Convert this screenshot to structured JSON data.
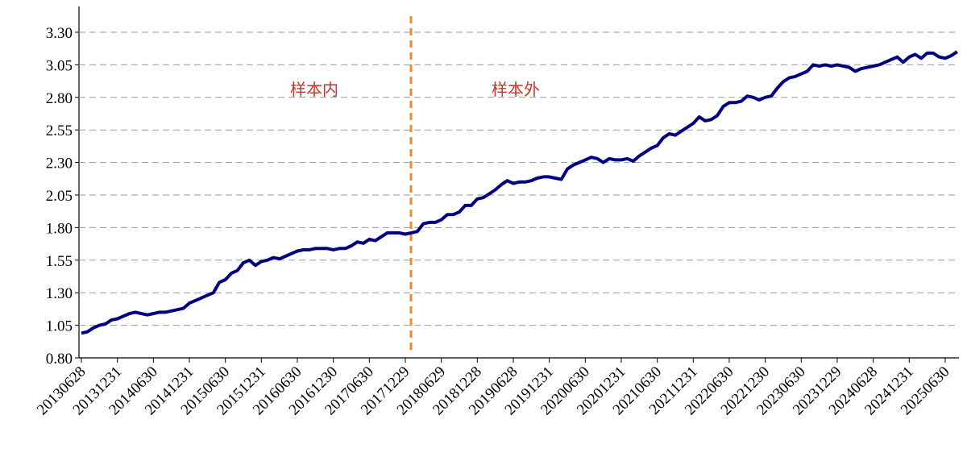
{
  "chart_data": {
    "type": "line",
    "annotations": [
      "样本内",
      "样本外"
    ],
    "categories": [
      "20130628",
      null,
      null,
      null,
      null,
      null,
      "20131231",
      null,
      null,
      null,
      null,
      null,
      "20140630",
      null,
      null,
      null,
      null,
      null,
      "20141231",
      null,
      null,
      null,
      null,
      null,
      "20150630",
      null,
      null,
      null,
      null,
      null,
      "20151231",
      null,
      null,
      null,
      null,
      null,
      "20160630",
      null,
      null,
      null,
      null,
      null,
      "20161230",
      null,
      null,
      null,
      null,
      null,
      "20170630",
      null,
      null,
      null,
      null,
      null,
      "20171229",
      null,
      null,
      null,
      null,
      null,
      "20180629",
      null,
      null,
      null,
      null,
      null,
      "20181228",
      null,
      null,
      null,
      null,
      null,
      "20190628",
      null,
      null,
      null,
      null,
      null,
      "20191231",
      null,
      null,
      null,
      null,
      null,
      "20200630",
      null,
      null,
      null,
      null,
      null,
      "20201231",
      null,
      null,
      null,
      null,
      null,
      "20210630",
      null,
      null,
      null,
      null,
      null,
      "20211231",
      null,
      null,
      null,
      null,
      null,
      "20220630",
      null,
      null,
      null,
      null,
      null,
      "20221230",
      null,
      null,
      null,
      null,
      null,
      "20230630",
      null,
      null,
      null,
      null,
      null,
      "20231229",
      null,
      null,
      null,
      null,
      null,
      "20240628",
      null,
      null,
      null,
      null,
      null,
      "20241231",
      null,
      null,
      null,
      null,
      null,
      "20250630",
      null,
      null
    ],
    "values": [
      0.99,
      1.0,
      1.03,
      1.05,
      1.06,
      1.09,
      1.1,
      1.12,
      1.14,
      1.15,
      1.14,
      1.13,
      1.14,
      1.15,
      1.15,
      1.16,
      1.17,
      1.18,
      1.22,
      1.24,
      1.26,
      1.28,
      1.3,
      1.38,
      1.4,
      1.45,
      1.47,
      1.53,
      1.55,
      1.51,
      1.54,
      1.55,
      1.57,
      1.56,
      1.58,
      1.6,
      1.62,
      1.63,
      1.63,
      1.64,
      1.64,
      1.64,
      1.63,
      1.64,
      1.64,
      1.66,
      1.69,
      1.68,
      1.71,
      1.7,
      1.73,
      1.76,
      1.76,
      1.76,
      1.75,
      1.76,
      1.77,
      1.83,
      1.84,
      1.84,
      1.86,
      1.9,
      1.9,
      1.92,
      1.97,
      1.97,
      2.02,
      2.03,
      2.06,
      2.09,
      2.13,
      2.16,
      2.14,
      2.15,
      2.15,
      2.16,
      2.18,
      2.19,
      2.19,
      2.18,
      2.17,
      2.25,
      2.28,
      2.3,
      2.32,
      2.34,
      2.33,
      2.3,
      2.33,
      2.32,
      2.32,
      2.33,
      2.31,
      2.35,
      2.38,
      2.41,
      2.43,
      2.49,
      2.52,
      2.51,
      2.54,
      2.57,
      2.6,
      2.65,
      2.62,
      2.63,
      2.66,
      2.73,
      2.76,
      2.76,
      2.77,
      2.81,
      2.8,
      2.78,
      2.8,
      2.81,
      2.87,
      2.92,
      2.95,
      2.96,
      2.98,
      3.0,
      3.05,
      3.04,
      3.05,
      3.04,
      3.05,
      3.04,
      3.03,
      3.0,
      3.02,
      3.03,
      3.04,
      3.05,
      3.07,
      3.09,
      3.11,
      3.07,
      3.11,
      3.13,
      3.1,
      3.14,
      3.14,
      3.11,
      3.1,
      3.12,
      3.15
    ],
    "color": "#000080",
    "ylim": [
      0.8,
      3.5
    ],
    "yticks": [
      {
        "value": 0.8,
        "label": "0.80"
      },
      {
        "value": 1.05,
        "label": "1.05"
      },
      {
        "value": 1.3,
        "label": "1.30"
      },
      {
        "value": 1.55,
        "label": "1.55"
      },
      {
        "value": 1.8,
        "label": "1.80"
      },
      {
        "value": 2.05,
        "label": "2.05"
      },
      {
        "value": 2.3,
        "label": "2.30"
      },
      {
        "value": 2.55,
        "label": "2.55"
      },
      {
        "value": 2.8,
        "label": "2.80"
      },
      {
        "value": 3.05,
        "label": "3.05"
      },
      {
        "value": 3.3,
        "label": "3.30"
      }
    ],
    "grid": true
  }
}
